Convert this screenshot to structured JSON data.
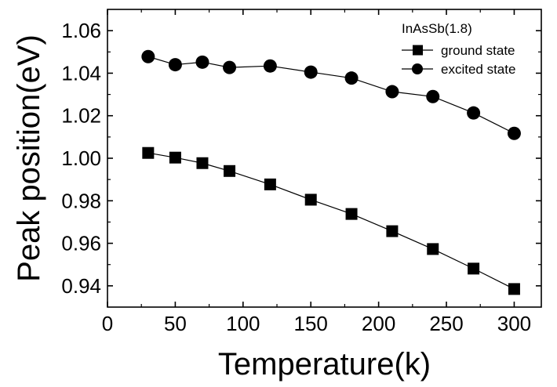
{
  "chart_data": {
    "type": "line",
    "xlabel": "Temperature(k)",
    "ylabel": "Peak position(eV)",
    "xlim": [
      0,
      320
    ],
    "ylim": [
      0.93,
      1.07
    ],
    "x_ticks": [
      0,
      50,
      100,
      150,
      200,
      250,
      300
    ],
    "x_tick_labels": [
      "0",
      "50",
      "100",
      "150",
      "200",
      "250",
      "300"
    ],
    "y_ticks": [
      0.94,
      0.96,
      0.98,
      1.0,
      1.02,
      1.04,
      1.06
    ],
    "y_tick_labels": [
      "0.94",
      "0.96",
      "0.98",
      "1.00",
      "1.02",
      "1.04",
      "1.06"
    ],
    "grid": false,
    "legend": {
      "title": "InAsSb(1.8)",
      "placement": "top-right"
    },
    "series": [
      {
        "name": "ground state",
        "marker": "square",
        "x": [
          30,
          50,
          70,
          90,
          120,
          150,
          180,
          210,
          240,
          270,
          300
        ],
        "y": [
          1.0025,
          1.0003,
          0.9977,
          0.994,
          0.9877,
          0.9805,
          0.9738,
          0.9657,
          0.9573,
          0.9481,
          0.9385
        ]
      },
      {
        "name": "excited state",
        "marker": "circle",
        "x": [
          30,
          50,
          70,
          90,
          120,
          150,
          180,
          210,
          240,
          270,
          300
        ],
        "y": [
          1.0478,
          1.044,
          1.0452,
          1.0427,
          1.0434,
          1.0405,
          1.0377,
          1.0313,
          1.029,
          1.0213,
          1.0117
        ]
      }
    ]
  },
  "colors": {
    "ink": "#000000",
    "background": "#ffffff"
  }
}
